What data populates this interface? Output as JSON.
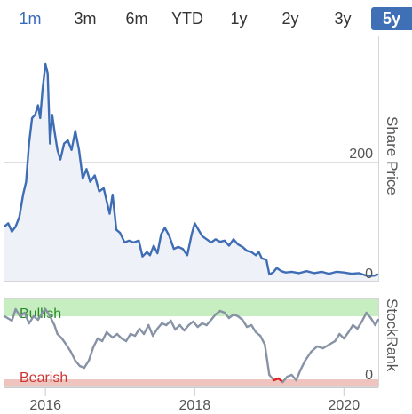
{
  "range_tabs": [
    {
      "label": "1m",
      "state": "selected"
    },
    {
      "label": "3m",
      "state": "normal"
    },
    {
      "label": "6m",
      "state": "normal"
    },
    {
      "label": "YTD",
      "state": "normal"
    },
    {
      "label": "1y",
      "state": "normal"
    },
    {
      "label": "2y",
      "state": "normal"
    },
    {
      "label": "3y",
      "state": "normal"
    },
    {
      "label": "5y",
      "state": "active"
    }
  ],
  "colors": {
    "price_line": "#3f6db5",
    "price_fill": "#eef1f8",
    "rank_line": "#8793a5",
    "rank_bearish_dip": "#e0201d",
    "bullish_band": "#c6eec0",
    "bearish_band": "#efc3be",
    "bullish_text": "#2b8a2b",
    "bearish_text": "#cc3333",
    "active_tab_bg": "#3f6fb5"
  },
  "chart_data": [
    {
      "type": "line",
      "series": [
        {
          "values": [
            [
              2015.45,
              80
            ],
            [
              2015.5,
              85
            ],
            [
              2015.55,
              72
            ],
            [
              2015.6,
              80
            ],
            [
              2015.65,
              95
            ],
            [
              2015.7,
              130
            ],
            [
              2015.74,
              150
            ],
            [
              2015.78,
              210
            ],
            [
              2015.82,
              250
            ],
            [
              2015.86,
              255
            ],
            [
              2015.9,
              270
            ],
            [
              2015.93,
              250
            ],
            [
              2015.96,
              295
            ],
            [
              2016.0,
              335
            ],
            [
              2016.03,
              320
            ],
            [
              2016.06,
              210
            ],
            [
              2016.09,
              255
            ],
            [
              2016.12,
              230
            ],
            [
              2016.16,
              200
            ],
            [
              2016.2,
              185
            ],
            [
              2016.25,
              210
            ],
            [
              2016.3,
              215
            ],
            [
              2016.35,
              200
            ],
            [
              2016.4,
              230
            ],
            [
              2016.45,
              200
            ],
            [
              2016.5,
              155
            ],
            [
              2016.55,
              170
            ],
            [
              2016.6,
              150
            ],
            [
              2016.66,
              160
            ],
            [
              2016.72,
              135
            ],
            [
              2016.78,
              140
            ],
            [
              2016.82,
              120
            ],
            [
              2016.86,
              100
            ],
            [
              2016.9,
              130
            ],
            [
              2016.95,
              75
            ],
            [
              2017.0,
              70
            ],
            [
              2017.06,
              55
            ],
            [
              2017.12,
              58
            ],
            [
              2017.18,
              55
            ],
            [
              2017.25,
              58
            ],
            [
              2017.3,
              33
            ],
            [
              2017.36,
              40
            ],
            [
              2017.4,
              35
            ],
            [
              2017.45,
              50
            ],
            [
              2017.5,
              38
            ],
            [
              2017.55,
              68
            ],
            [
              2017.6,
              78
            ],
            [
              2017.66,
              65
            ],
            [
              2017.72,
              45
            ],
            [
              2017.78,
              48
            ],
            [
              2017.84,
              45
            ],
            [
              2017.9,
              35
            ],
            [
              2017.96,
              68
            ],
            [
              2018.0,
              85
            ],
            [
              2018.05,
              75
            ],
            [
              2018.1,
              65
            ],
            [
              2018.16,
              60
            ],
            [
              2018.22,
              55
            ],
            [
              2018.28,
              60
            ],
            [
              2018.34,
              56
            ],
            [
              2018.4,
              58
            ],
            [
              2018.46,
              50
            ],
            [
              2018.52,
              60
            ],
            [
              2018.58,
              52
            ],
            [
              2018.64,
              48
            ],
            [
              2018.7,
              42
            ],
            [
              2018.76,
              40
            ],
            [
              2018.82,
              35
            ],
            [
              2018.86,
              40
            ],
            [
              2018.9,
              30
            ],
            [
              2018.96,
              28
            ],
            [
              2019.0,
              5
            ],
            [
              2019.05,
              8
            ],
            [
              2019.1,
              15
            ],
            [
              2019.16,
              10
            ],
            [
              2019.22,
              8
            ],
            [
              2019.3,
              9
            ],
            [
              2019.4,
              7
            ],
            [
              2019.5,
              10
            ],
            [
              2019.6,
              7
            ],
            [
              2019.7,
              9
            ],
            [
              2019.8,
              6
            ],
            [
              2019.9,
              9
            ],
            [
              2020.0,
              8
            ],
            [
              2020.1,
              6
            ],
            [
              2020.2,
              7
            ],
            [
              2020.3,
              3
            ],
            [
              2020.4,
              3
            ],
            [
              2020.46,
              5
            ]
          ]
        }
      ],
      "ylim": [
        -5,
        378
      ],
      "xlim": [
        2015.45,
        2020.46
      ],
      "y_ticks": [
        {
          "value": 0,
          "label": "0"
        },
        {
          "value": 200,
          "label": "200"
        }
      ],
      "ylabel": "Share Price",
      "grid": "horizontal",
      "fill": "under-line"
    },
    {
      "type": "line",
      "series": [
        {
          "values": [
            [
              2015.45,
              80
            ],
            [
              2015.55,
              75
            ],
            [
              2015.6,
              88
            ],
            [
              2015.66,
              80
            ],
            [
              2015.72,
              84
            ],
            [
              2015.78,
              72
            ],
            [
              2015.84,
              80
            ],
            [
              2015.9,
              76
            ],
            [
              2015.96,
              84
            ],
            [
              2016.0,
              88
            ],
            [
              2016.06,
              80
            ],
            [
              2016.12,
              70
            ],
            [
              2016.16,
              60
            ],
            [
              2016.22,
              55
            ],
            [
              2016.28,
              48
            ],
            [
              2016.34,
              40
            ],
            [
              2016.4,
              30
            ],
            [
              2016.46,
              24
            ],
            [
              2016.52,
              22
            ],
            [
              2016.58,
              30
            ],
            [
              2016.64,
              45
            ],
            [
              2016.7,
              55
            ],
            [
              2016.76,
              52
            ],
            [
              2016.82,
              62
            ],
            [
              2016.9,
              56
            ],
            [
              2016.96,
              60
            ],
            [
              2017.02,
              55
            ],
            [
              2017.08,
              52
            ],
            [
              2017.14,
              60
            ],
            [
              2017.2,
              58
            ],
            [
              2017.26,
              66
            ],
            [
              2017.32,
              60
            ],
            [
              2017.38,
              70
            ],
            [
              2017.44,
              58
            ],
            [
              2017.5,
              66
            ],
            [
              2017.56,
              72
            ],
            [
              2017.62,
              70
            ],
            [
              2017.68,
              75
            ],
            [
              2017.74,
              65
            ],
            [
              2017.8,
              70
            ],
            [
              2017.86,
              64
            ],
            [
              2017.92,
              70
            ],
            [
              2017.98,
              74
            ],
            [
              2018.04,
              68
            ],
            [
              2018.1,
              72
            ],
            [
              2018.16,
              70
            ],
            [
              2018.22,
              76
            ],
            [
              2018.28,
              82
            ],
            [
              2018.34,
              86
            ],
            [
              2018.4,
              84
            ],
            [
              2018.46,
              78
            ],
            [
              2018.52,
              82
            ],
            [
              2018.58,
              80
            ],
            [
              2018.64,
              76
            ],
            [
              2018.7,
              68
            ],
            [
              2018.76,
              70
            ],
            [
              2018.82,
              62
            ],
            [
              2018.88,
              58
            ],
            [
              2018.94,
              48
            ],
            [
              2019.0,
              14
            ],
            [
              2019.06,
              8
            ],
            [
              2019.12,
              10
            ],
            [
              2019.18,
              6
            ],
            [
              2019.24,
              12
            ],
            [
              2019.3,
              14
            ],
            [
              2019.36,
              8
            ],
            [
              2019.42,
              20
            ],
            [
              2019.48,
              30
            ],
            [
              2019.56,
              40
            ],
            [
              2019.64,
              46
            ],
            [
              2019.72,
              44
            ],
            [
              2019.8,
              48
            ],
            [
              2019.88,
              52
            ],
            [
              2019.94,
              60
            ],
            [
              2020.0,
              55
            ],
            [
              2020.06,
              62
            ],
            [
              2020.12,
              70
            ],
            [
              2020.18,
              66
            ],
            [
              2020.24,
              74
            ],
            [
              2020.3,
              84
            ],
            [
              2020.36,
              78
            ],
            [
              2020.42,
              70
            ],
            [
              2020.46,
              76
            ]
          ]
        }
      ],
      "bands": [
        {
          "label": "Bullish",
          "from": 80,
          "to": 100
        },
        {
          "label": "Bearish",
          "from": 0,
          "to": 9
        }
      ],
      "bearish_threshold": 12,
      "ylim": [
        0,
        100
      ],
      "xlim": [
        2015.45,
        2020.46
      ],
      "y_ticks": [
        {
          "value": 0,
          "label": "0"
        }
      ],
      "ylabel": "StockRank",
      "x_ticks": [
        {
          "value": 2016,
          "label": "2016"
        },
        {
          "value": 2018,
          "label": "2018"
        },
        {
          "value": 2020,
          "label": "2020"
        }
      ]
    }
  ]
}
